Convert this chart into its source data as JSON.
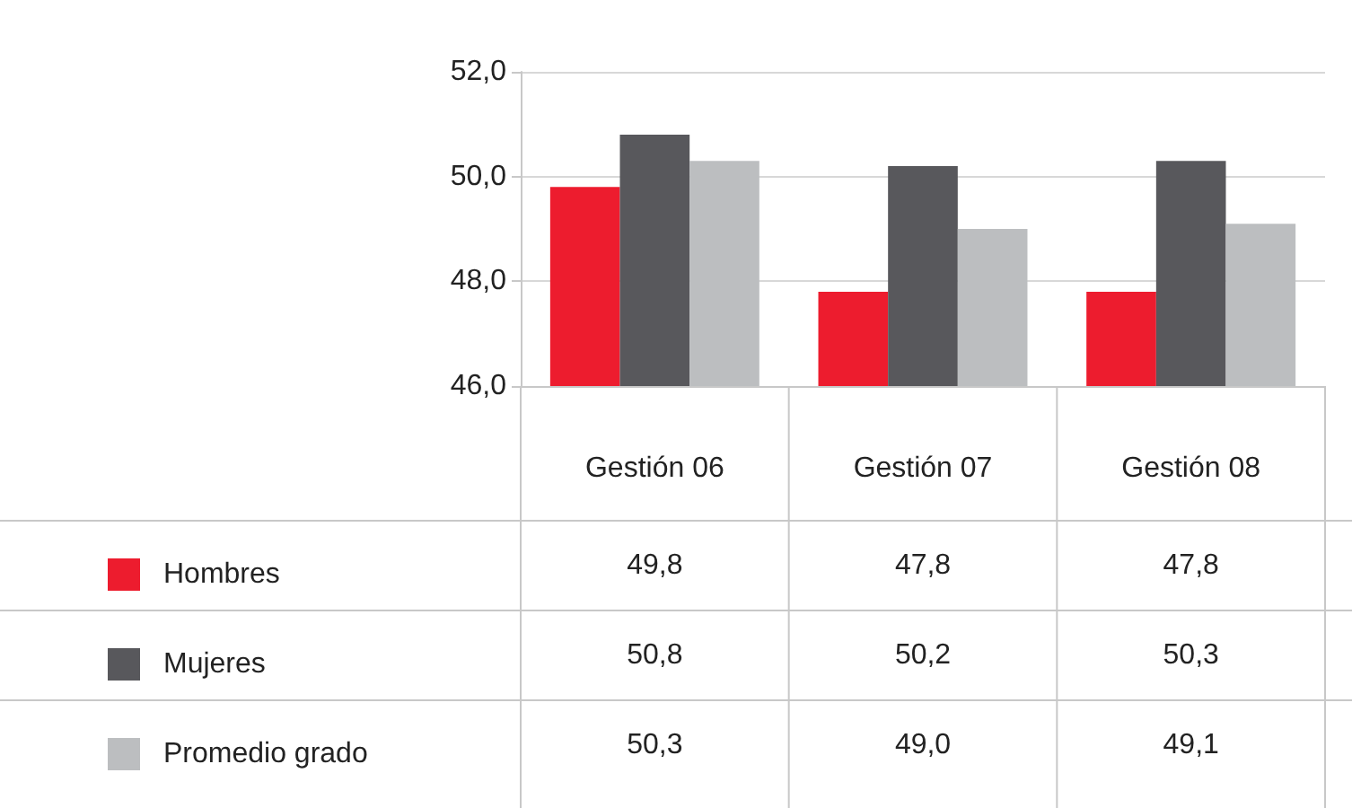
{
  "chart_data": {
    "type": "bar",
    "categories": [
      "Gestión 06",
      "Gestión 07",
      "Gestión 08"
    ],
    "series": [
      {
        "name": "Hombres",
        "color": "#ed1c2e",
        "values": [
          49.8,
          47.8,
          47.8
        ],
        "value_labels": [
          "49,8",
          "47,8",
          "47,8"
        ]
      },
      {
        "name": "Mujeres",
        "color": "#58585c",
        "values": [
          50.8,
          50.2,
          50.3
        ],
        "value_labels": [
          "50,8",
          "50,2",
          "50,3"
        ]
      },
      {
        "name": "Promedio grado",
        "color": "#bcbec0",
        "values": [
          50.3,
          49.0,
          49.1
        ],
        "value_labels": [
          "50,3",
          "49,0",
          "49,1"
        ]
      }
    ],
    "ylim": [
      46,
      52
    ],
    "yticks": [
      {
        "value": 46,
        "label": "46,0"
      },
      {
        "value": 48,
        "label": "48,0"
      },
      {
        "value": 50,
        "label": "50,0"
      },
      {
        "value": 52,
        "label": "52,0"
      }
    ],
    "grid": "y",
    "legend": "bottom"
  }
}
